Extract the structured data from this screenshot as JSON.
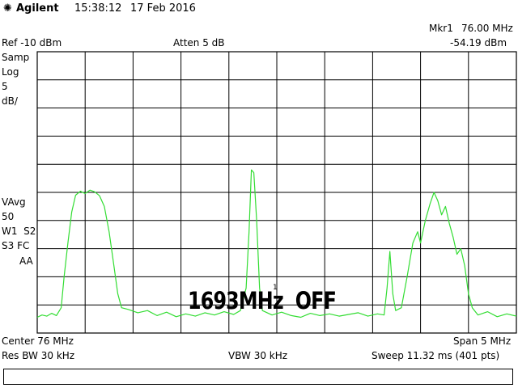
{
  "header": {
    "brand": "Agilent",
    "time": "15:38:12",
    "date": "17 Feb 2016",
    "marker_label": "Mkr1",
    "marker_freq": "76.00 MHz",
    "marker_level": "-54.19 dBm",
    "ref_level": "Ref -10 dBm",
    "attenuation": "Atten 5 dB"
  },
  "left_panel": {
    "detector": "Samp",
    "scale_type": "Log",
    "scale_value": "5",
    "scale_unit": "dB/",
    "avg": "VAvg",
    "avg_count": "50",
    "traces": "W1  S2",
    "trace_flags": "S3 FC",
    "aa": "AA"
  },
  "overlay": {
    "text": "1693MHz  OFF",
    "marker_number": "1"
  },
  "footer": {
    "center": "Center 76 MHz",
    "span": "Span 5 MHz",
    "res_bw": "Res BW 30 kHz",
    "vbw": "VBW 30 kHz",
    "sweep": "Sweep 11.32 ms (401 pts)"
  },
  "colors": {
    "trace": "#33dd33",
    "grid": "#000000",
    "background": "#ffffff"
  },
  "chart_data": {
    "type": "line",
    "x_range_mhz": [
      73.5,
      78.5
    ],
    "ylim_dbm": [
      -60,
      -10
    ],
    "grid": true,
    "y_divisions": 10,
    "x_divisions": 10,
    "series": [
      {
        "points": [
          [
            73.5,
            -57.2
          ],
          [
            73.55,
            -56.8
          ],
          [
            73.6,
            -57.0
          ],
          [
            73.65,
            -56.5
          ],
          [
            73.7,
            -56.9
          ],
          [
            73.75,
            -55.5
          ],
          [
            73.78,
            -50.0
          ],
          [
            73.82,
            -44.0
          ],
          [
            73.86,
            -38.5
          ],
          [
            73.9,
            -35.5
          ],
          [
            73.95,
            -34.8
          ],
          [
            74.0,
            -35.2
          ],
          [
            74.05,
            -34.6
          ],
          [
            74.1,
            -34.9
          ],
          [
            74.15,
            -35.6
          ],
          [
            74.2,
            -37.5
          ],
          [
            74.25,
            -42.0
          ],
          [
            74.3,
            -48.0
          ],
          [
            74.34,
            -53.0
          ],
          [
            74.38,
            -55.5
          ],
          [
            74.45,
            -55.8
          ],
          [
            74.55,
            -56.4
          ],
          [
            74.65,
            -56.0
          ],
          [
            74.75,
            -56.9
          ],
          [
            74.85,
            -56.3
          ],
          [
            74.95,
            -57.1
          ],
          [
            75.05,
            -56.6
          ],
          [
            75.15,
            -57.0
          ],
          [
            75.25,
            -56.4
          ],
          [
            75.35,
            -56.8
          ],
          [
            75.45,
            -56.2
          ],
          [
            75.55,
            -56.7
          ],
          [
            75.62,
            -56.0
          ],
          [
            75.68,
            -52.0
          ],
          [
            75.71,
            -42.0
          ],
          [
            75.735,
            -31.0
          ],
          [
            75.76,
            -31.5
          ],
          [
            75.79,
            -40.0
          ],
          [
            75.82,
            -52.0
          ],
          [
            75.85,
            -56.0
          ],
          [
            75.95,
            -56.8
          ],
          [
            76.05,
            -56.3
          ],
          [
            76.15,
            -56.9
          ],
          [
            76.25,
            -57.2
          ],
          [
            76.35,
            -56.5
          ],
          [
            76.45,
            -56.9
          ],
          [
            76.55,
            -56.6
          ],
          [
            76.65,
            -57.0
          ],
          [
            76.75,
            -56.7
          ],
          [
            76.85,
            -56.4
          ],
          [
            76.95,
            -57.0
          ],
          [
            77.05,
            -56.6
          ],
          [
            77.12,
            -56.8
          ],
          [
            77.15,
            -52.0
          ],
          [
            77.18,
            -45.5
          ],
          [
            77.21,
            -53.0
          ],
          [
            77.24,
            -56.0
          ],
          [
            77.3,
            -55.5
          ],
          [
            77.36,
            -50.0
          ],
          [
            77.42,
            -44.0
          ],
          [
            77.47,
            -42.0
          ],
          [
            77.5,
            -44.0
          ],
          [
            77.55,
            -40.0
          ],
          [
            77.6,
            -37.0
          ],
          [
            77.64,
            -35.0
          ],
          [
            77.68,
            -36.5
          ],
          [
            77.72,
            -39.0
          ],
          [
            77.76,
            -37.5
          ],
          [
            77.8,
            -40.5
          ],
          [
            77.84,
            -43.0
          ],
          [
            77.88,
            -46.0
          ],
          [
            77.92,
            -45.0
          ],
          [
            77.96,
            -48.0
          ],
          [
            78.0,
            -53.0
          ],
          [
            78.04,
            -55.5
          ],
          [
            78.1,
            -56.8
          ],
          [
            78.2,
            -56.2
          ],
          [
            78.3,
            -57.1
          ],
          [
            78.4,
            -56.6
          ],
          [
            78.5,
            -57.0
          ]
        ]
      }
    ]
  }
}
